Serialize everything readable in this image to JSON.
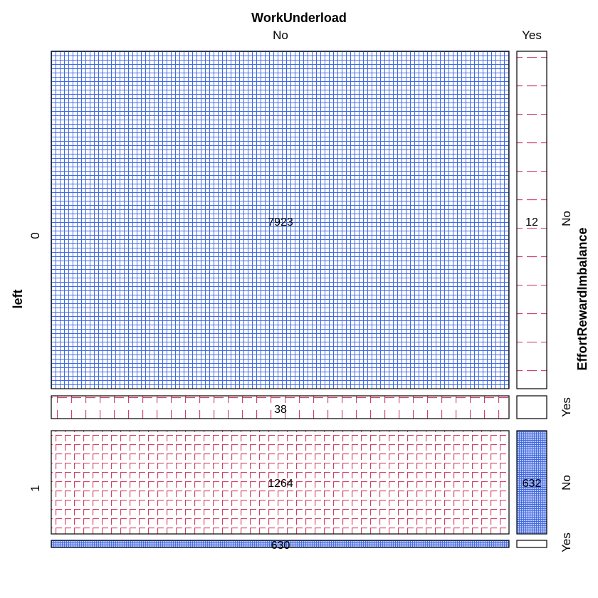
{
  "chart_data": {
    "type": "mosaic",
    "column_variable": "WorkUnderload",
    "row_variable_outer": "left",
    "row_variable_inner": "EffortRewardImbalance",
    "column_levels": [
      "No",
      "Yes"
    ],
    "outer_levels": [
      "0",
      "1"
    ],
    "inner_levels": [
      "No",
      "Yes"
    ],
    "cells": [
      {
        "left": "0",
        "EffortRewardImbalance": "No",
        "WorkUnderload": "No",
        "count": 7923,
        "label": "7923",
        "shading": "blue"
      },
      {
        "left": "0",
        "EffortRewardImbalance": "No",
        "WorkUnderload": "Yes",
        "count": 12,
        "label": "12",
        "shading": "red"
      },
      {
        "left": "0",
        "EffortRewardImbalance": "Yes",
        "WorkUnderload": "No",
        "count": 38,
        "label": "38",
        "shading": "red"
      },
      {
        "left": "0",
        "EffortRewardImbalance": "Yes",
        "WorkUnderload": "Yes",
        "count": 0,
        "label": "",
        "shading": "none"
      },
      {
        "left": "1",
        "EffortRewardImbalance": "No",
        "WorkUnderload": "No",
        "count": 1264,
        "label": "1264",
        "shading": "red"
      },
      {
        "left": "1",
        "EffortRewardImbalance": "No",
        "WorkUnderload": "Yes",
        "count": 632,
        "label": "632",
        "shading": "blue"
      },
      {
        "left": "1",
        "EffortRewardImbalance": "Yes",
        "WorkUnderload": "No",
        "count": 630,
        "label": "630",
        "shading": "blue"
      },
      {
        "left": "1",
        "EffortRewardImbalance": "Yes",
        "WorkUnderload": "Yes",
        "count": 0,
        "label": "",
        "shading": "none"
      }
    ],
    "colors": {
      "blue": "#4169e1",
      "blue_fill": "#8ea2ee",
      "red": "#d0436b",
      "border": "#000000"
    }
  }
}
